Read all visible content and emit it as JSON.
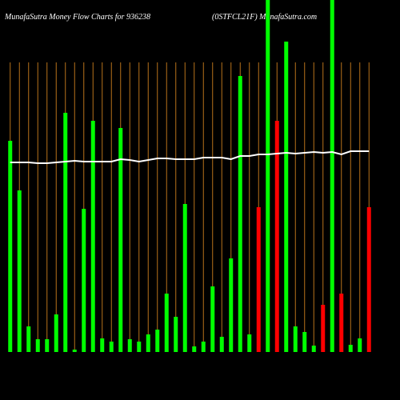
{
  "chart_data": {
    "type": "bar-line",
    "title": "MunafaSutra  Money Flow  Charts for 936238",
    "subtitle": "(0STFCL21F) MunafaSutra.com",
    "categories": [
      null,
      null,
      null,
      null,
      null,
      null,
      null,
      null,
      null,
      null,
      null,
      null,
      null,
      null,
      null,
      null,
      null,
      null,
      null,
      null,
      null,
      null,
      null,
      null,
      null,
      null,
      null,
      null,
      null,
      null,
      null,
      null,
      null,
      null,
      null,
      null,
      null,
      null,
      null,
      null
    ],
    "values": [
      264,
      202,
      32,
      16,
      16,
      47,
      299,
      3,
      179,
      289,
      17,
      13,
      280,
      16,
      13,
      22,
      28,
      73,
      44,
      185,
      7,
      13,
      82,
      19,
      117,
      345,
      22,
      181,
      440,
      289,
      388,
      32,
      25,
      8,
      59,
      440,
      73,
      9,
      17,
      181
    ],
    "colors": [
      "#00ff00",
      "#00ff00",
      "#00ff00",
      "#00ff00",
      "#00ff00",
      "#00ff00",
      "#00ff00",
      "#00ff00",
      "#00ff00",
      "#00ff00",
      "#00ff00",
      "#00ff00",
      "#00ff00",
      "#00ff00",
      "#00ff00",
      "#00ff00",
      "#00ff00",
      "#00ff00",
      "#00ff00",
      "#00ff00",
      "#00ff00",
      "#00ff00",
      "#00ff00",
      "#00ff00",
      "#00ff00",
      "#00ff00",
      "#00ff00",
      "#ff0000",
      "#00ff00",
      "#ff0000",
      "#00ff00",
      "#00ff00",
      "#00ff00",
      "#00ff00",
      "#ff0000",
      "#00ff00",
      "#ff0000",
      "#00ff00",
      "#00ff00",
      "#ff0000"
    ],
    "line": {
      "color": "#ffffff",
      "values": [
        237,
        237,
        237,
        236,
        236,
        237,
        238,
        239,
        238,
        238,
        238,
        238,
        241,
        240,
        238,
        240,
        242,
        242,
        241,
        241,
        241,
        243,
        243,
        243,
        241,
        245,
        245,
        247,
        247,
        248,
        249,
        248,
        249,
        250,
        249,
        250,
        247,
        251,
        251,
        251
      ]
    },
    "grid_color": "#b8731a",
    "ylim": [
      0,
      440
    ]
  }
}
